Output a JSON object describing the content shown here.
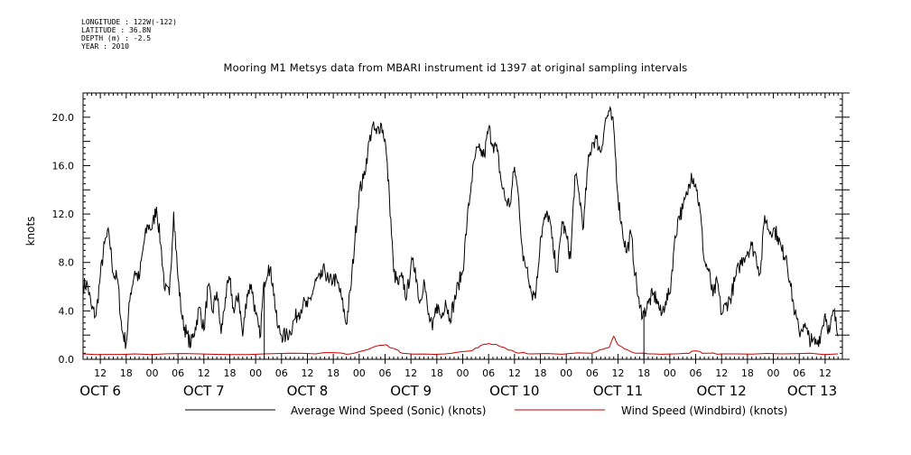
{
  "metadata": {
    "longitude": "LONGITUDE : 122W(-122)",
    "latitude": "LATITUDE : 36.8N",
    "depth": "DEPTH (m) : -2.5",
    "year": "YEAR : 2010"
  },
  "chart_data": {
    "type": "line",
    "title": "Mooring M1 Metsys data from MBARI instrument id 1397 at original sampling intervals",
    "ylabel": "knots",
    "xlabel": "",
    "x_range_hours": [
      8,
      172
    ],
    "ylim": [
      0,
      22
    ],
    "y_ticks": [
      0.0,
      4.0,
      8.0,
      12.0,
      16.0,
      20.0
    ],
    "y_tick_labels": [
      "0.0",
      "4.0",
      "8.0",
      "12.0",
      "16.0",
      "20.0"
    ],
    "hour_tick_labels": [
      "12",
      "18",
      "00",
      "06",
      "12",
      "18",
      "00",
      "06",
      "12",
      "18",
      "00",
      "06",
      "12",
      "18",
      "00",
      "06",
      "12",
      "18",
      "00",
      "06",
      "12",
      "18",
      "00",
      "06",
      "12",
      "18",
      "00",
      "06",
      "12",
      "18",
      "00",
      "06"
    ],
    "day_labels": [
      "OCT 6",
      "OCT 7",
      "OCT 8",
      "OCT 9",
      "OCT 10",
      "OCT 11",
      "OCT 12",
      "OCT 13"
    ],
    "grid": false,
    "legend_placement": "bottom",
    "vertical_markers_hours": [
      50,
      138
    ],
    "series": [
      {
        "name": "Average Wind Speed (Sonic) (knots)",
        "color": "#000000",
        "points": [
          [
            8,
            6.1
          ],
          [
            9,
            6.2
          ],
          [
            10,
            4.2
          ],
          [
            11,
            3.6
          ],
          [
            12,
            6.9
          ],
          [
            13,
            9.6
          ],
          [
            14,
            10.4
          ],
          [
            15,
            7.1
          ],
          [
            16,
            6.6
          ],
          [
            17,
            2.4
          ],
          [
            18,
            1.3
          ],
          [
            19,
            5.5
          ],
          [
            20,
            7.3
          ],
          [
            21,
            6.6
          ],
          [
            22,
            9.4
          ],
          [
            23,
            11.1
          ],
          [
            24,
            10.8
          ],
          [
            25,
            12.6
          ],
          [
            26,
            9.5
          ],
          [
            27,
            5.7
          ],
          [
            28,
            5.3
          ],
          [
            29,
            12.2
          ],
          [
            30,
            6.7
          ],
          [
            31,
            3.3
          ],
          [
            32,
            2.1
          ],
          [
            33,
            1.2
          ],
          [
            34,
            2.6
          ],
          [
            35,
            4.3
          ],
          [
            36,
            2.4
          ],
          [
            37,
            6.1
          ],
          [
            38,
            3.9
          ],
          [
            39,
            5.6
          ],
          [
            40,
            2.1
          ],
          [
            41,
            5.1
          ],
          [
            42,
            6.6
          ],
          [
            43,
            3.8
          ],
          [
            44,
            5.5
          ],
          [
            45,
            1.9
          ],
          [
            46,
            5.4
          ],
          [
            47,
            6.2
          ],
          [
            48,
            3.7
          ],
          [
            49,
            1.8
          ],
          [
            50,
            6.4
          ],
          [
            51,
            7.8
          ],
          [
            52,
            6.3
          ],
          [
            53,
            2.8
          ],
          [
            54,
            2.0
          ],
          [
            55,
            1.9
          ],
          [
            56,
            2.3
          ],
          [
            57,
            3.3
          ],
          [
            58,
            3.9
          ],
          [
            59,
            4.6
          ],
          [
            60,
            4.3
          ],
          [
            61,
            5.3
          ],
          [
            62,
            6.5
          ],
          [
            63,
            6.6
          ],
          [
            64,
            7.4
          ],
          [
            65,
            6.3
          ],
          [
            66,
            6.7
          ],
          [
            67,
            6.3
          ],
          [
            68,
            4.9
          ],
          [
            69,
            2.9
          ],
          [
            70,
            5.7
          ],
          [
            71,
            9.8
          ],
          [
            72,
            13.8
          ],
          [
            73,
            14.9
          ],
          [
            74,
            17.2
          ],
          [
            75,
            19.2
          ],
          [
            76,
            18.6
          ],
          [
            77,
            19.5
          ],
          [
            78,
            18.2
          ],
          [
            79,
            13.5
          ],
          [
            80,
            7.2
          ],
          [
            81,
            6.2
          ],
          [
            82,
            6.7
          ],
          [
            83,
            5.1
          ],
          [
            84,
            7.8
          ],
          [
            85,
            7.6
          ],
          [
            86,
            4.6
          ],
          [
            87,
            6.6
          ],
          [
            88,
            3.7
          ],
          [
            89,
            2.4
          ],
          [
            90,
            4.6
          ],
          [
            91,
            3.4
          ],
          [
            92,
            4.9
          ],
          [
            93,
            3.4
          ],
          [
            94,
            4.7
          ],
          [
            95,
            6.2
          ],
          [
            96,
            7.3
          ],
          [
            97,
            11.3
          ],
          [
            98,
            14.6
          ],
          [
            99,
            17.0
          ],
          [
            100,
            17.2
          ],
          [
            101,
            16.8
          ],
          [
            102,
            19.1
          ],
          [
            103,
            17.8
          ],
          [
            104,
            17.2
          ],
          [
            105,
            14.5
          ],
          [
            106,
            13.1
          ],
          [
            107,
            12.8
          ],
          [
            108,
            15.9
          ],
          [
            109,
            13.2
          ],
          [
            110,
            8.1
          ],
          [
            111,
            7.6
          ],
          [
            112,
            5.4
          ],
          [
            113,
            5.6
          ],
          [
            114,
            10.0
          ],
          [
            115,
            11.6
          ],
          [
            116,
            11.9
          ],
          [
            117,
            8.9
          ],
          [
            118,
            7.2
          ],
          [
            119,
            11.4
          ],
          [
            120,
            10.2
          ],
          [
            121,
            8.3
          ],
          [
            122,
            15.2
          ],
          [
            123,
            13.6
          ],
          [
            124,
            10.9
          ],
          [
            125,
            16.0
          ],
          [
            126,
            17.9
          ],
          [
            127,
            18.2
          ],
          [
            128,
            17.1
          ],
          [
            129,
            19.6
          ],
          [
            130,
            20.5
          ],
          [
            131,
            19.1
          ],
          [
            132,
            13.4
          ],
          [
            133,
            10.7
          ],
          [
            134,
            8.8
          ],
          [
            135,
            10.4
          ],
          [
            136,
            7.0
          ],
          [
            137,
            4.2
          ],
          [
            138,
            3.8
          ],
          [
            139,
            4.6
          ],
          [
            140,
            5.3
          ],
          [
            141,
            5.0
          ],
          [
            142,
            3.6
          ],
          [
            143,
            4.8
          ],
          [
            144,
            5.4
          ],
          [
            145,
            9.3
          ],
          [
            146,
            11.8
          ],
          [
            147,
            12.4
          ],
          [
            148,
            13.6
          ],
          [
            149,
            15.4
          ],
          [
            150,
            14.5
          ],
          [
            151,
            12.3
          ],
          [
            152,
            8.1
          ],
          [
            153,
            7.3
          ],
          [
            154,
            5.2
          ],
          [
            155,
            6.4
          ],
          [
            156,
            3.7
          ],
          [
            157,
            4.5
          ],
          [
            158,
            5.0
          ],
          [
            159,
            6.4
          ],
          [
            160,
            7.6
          ],
          [
            161,
            8.4
          ],
          [
            162,
            8.9
          ],
          [
            163,
            9.4
          ],
          [
            164,
            8.5
          ],
          [
            165,
            7.1
          ],
          [
            166,
            11.9
          ],
          [
            167,
            10.6
          ],
          [
            168,
            10.8
          ],
          [
            169,
            10.2
          ],
          [
            170,
            8.9
          ],
          [
            171,
            8.6
          ],
          [
            172,
            6.0
          ],
          [
            173,
            3.8
          ],
          [
            174,
            2.2
          ],
          [
            175,
            2.9
          ],
          [
            176,
            2.0
          ],
          [
            177,
            1.4
          ],
          [
            178,
            1.3
          ],
          [
            179,
            2.1
          ],
          [
            180,
            3.8
          ],
          [
            181,
            2.2
          ],
          [
            182,
            4.0
          ],
          [
            183,
            1.9
          ]
        ]
      },
      {
        "name": "Wind Speed (Windbird) (knots)",
        "color": "#cc0000",
        "points": [
          [
            8,
            0.45
          ],
          [
            20,
            0.45
          ],
          [
            35,
            0.45
          ],
          [
            50,
            0.45
          ],
          [
            62,
            0.45
          ],
          [
            66,
            0.55
          ],
          [
            70,
            0.45
          ],
          [
            74,
            0.8
          ],
          [
            76,
            1.1
          ],
          [
            78,
            1.2
          ],
          [
            80,
            0.9
          ],
          [
            82,
            0.5
          ],
          [
            92,
            0.45
          ],
          [
            98,
            0.7
          ],
          [
            100,
            1.1
          ],
          [
            102,
            1.3
          ],
          [
            104,
            1.2
          ],
          [
            106,
            0.9
          ],
          [
            108,
            0.6
          ],
          [
            112,
            0.45
          ],
          [
            126,
            0.5
          ],
          [
            128,
            0.8
          ],
          [
            130,
            1.0
          ],
          [
            131,
            1.9
          ],
          [
            132,
            1.2
          ],
          [
            134,
            0.8
          ],
          [
            136,
            0.5
          ],
          [
            140,
            0.45
          ],
          [
            148,
            0.5
          ],
          [
            150,
            0.7
          ],
          [
            152,
            0.5
          ],
          [
            156,
            0.45
          ],
          [
            170,
            0.45
          ],
          [
            183,
            0.45
          ]
        ]
      }
    ]
  }
}
